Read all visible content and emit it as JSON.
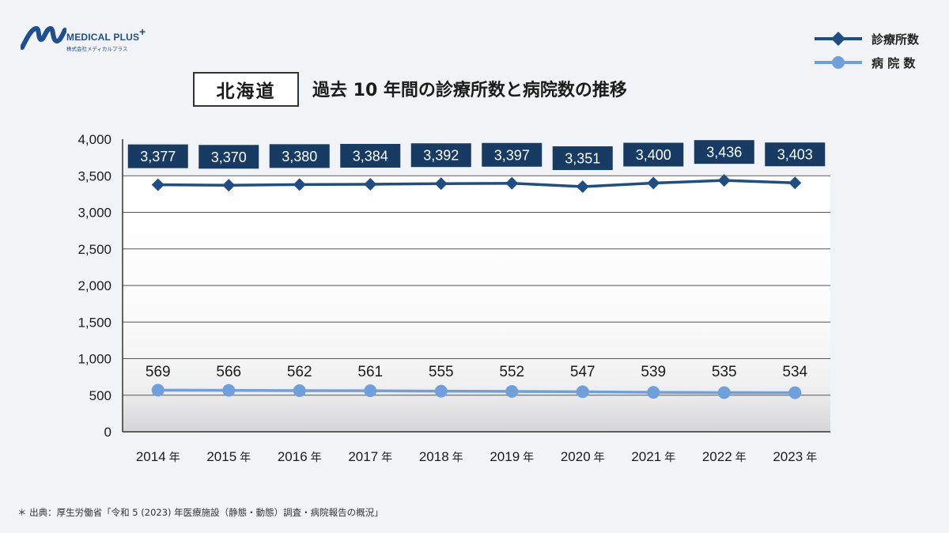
{
  "logo": {
    "name": "MEDICAL PLUS",
    "plus": "+",
    "sub": "株式会社メディカルプラス"
  },
  "header": {
    "region": "北海道",
    "title": "過去 10 年間の診療所数と病院数の推移"
  },
  "legend": [
    {
      "label": "診療所数",
      "marker": "diamond",
      "color": "#1f4e84"
    },
    {
      "label": "病 院 数",
      "marker": "circle",
      "color": "#6fa0dc"
    }
  ],
  "footnote": "＊ 出典：厚生労働省「令和 5 (2023) 年医療施設（静態・動態）調査・病院報告の概況」",
  "chart_data": {
    "type": "line",
    "categories": [
      "2014",
      "2015",
      "2016",
      "2017",
      "2018",
      "2019",
      "2020",
      "2021",
      "2022",
      "2023"
    ],
    "category_unit": "年",
    "ylim": [
      0,
      4000
    ],
    "yticks": [
      0,
      500,
      1000,
      1500,
      2000,
      2500,
      3000,
      3500,
      4000
    ],
    "ytick_labels": [
      "0",
      "500",
      "1,000",
      "1,500",
      "2,000",
      "2,500",
      "3,000",
      "3,500",
      "4,000"
    ],
    "grid": true,
    "series": [
      {
        "name": "診療所数",
        "values": [
          3377,
          3370,
          3380,
          3384,
          3392,
          3397,
          3351,
          3400,
          3436,
          3403
        ],
        "labels": [
          "3,377",
          "3,370",
          "3,380",
          "3,384",
          "3,392",
          "3,397",
          "3,351",
          "3,400",
          "3,436",
          "3,403"
        ],
        "color": "#1f4e84",
        "label_bg": "#183b64",
        "marker": "diamond"
      },
      {
        "name": "病 院 数",
        "values": [
          569,
          566,
          562,
          561,
          555,
          552,
          547,
          539,
          535,
          534
        ],
        "labels": [
          "569",
          "566",
          "562",
          "561",
          "555",
          "552",
          "547",
          "539",
          "535",
          "534"
        ],
        "color": "#6fa0dc",
        "marker": "circle"
      }
    ]
  }
}
